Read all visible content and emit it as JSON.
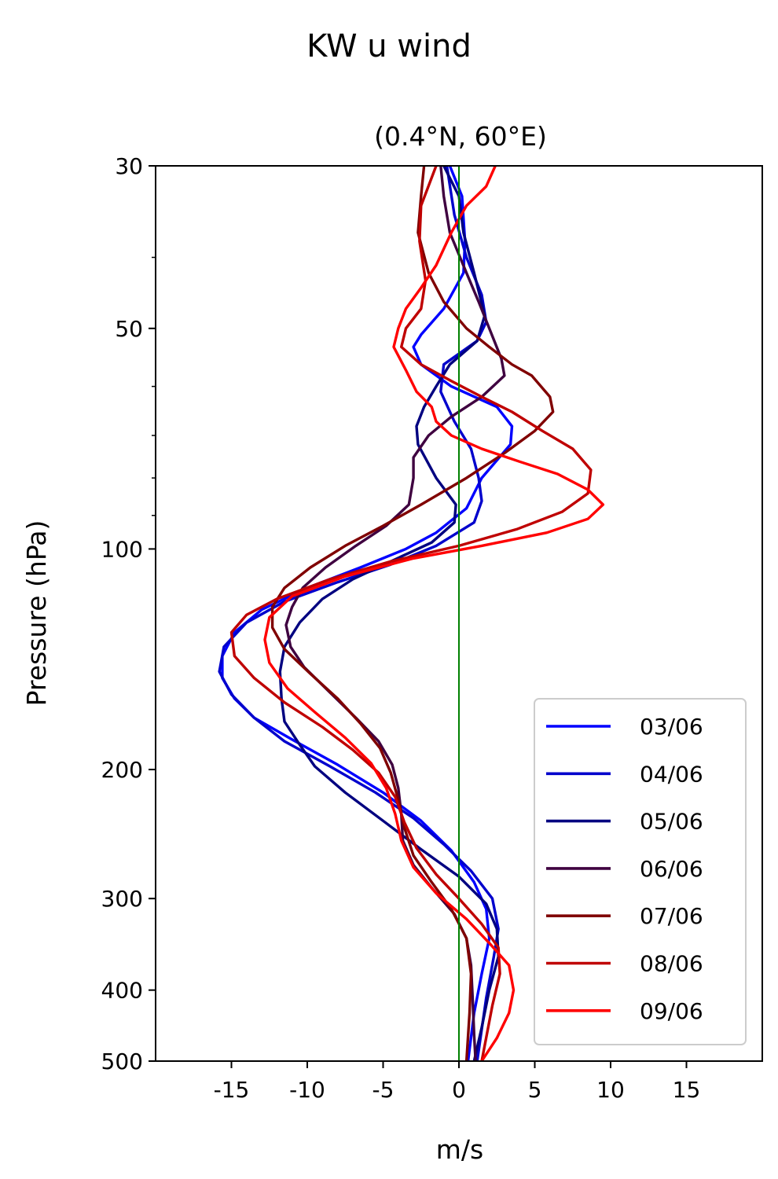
{
  "chart_data": {
    "type": "line",
    "title": "KW u wind",
    "subtitle": "(0.4°N, 60°E)",
    "xlabel": "m/s",
    "ylabel": "Pressure (hPa)",
    "xlim": [
      -20,
      20
    ],
    "ylim": [
      500,
      30
    ],
    "yscale": "log",
    "xticks": [
      -15,
      -10,
      -5,
      0,
      5,
      10,
      15
    ],
    "xtick_labels": [
      "-15",
      "-10",
      "-5",
      "0",
      "5",
      "10",
      "15"
    ],
    "yticks": [
      30,
      50,
      100,
      200,
      300,
      400,
      500
    ],
    "ytick_labels": [
      "30",
      "50",
      "100",
      "200",
      "300",
      "400",
      "500"
    ],
    "yminor_ticks": [
      40,
      60,
      70,
      80,
      90
    ],
    "reference_line": {
      "x": 0,
      "color": "#008000"
    },
    "grid": false,
    "legend_position": "lower-right",
    "series": [
      {
        "name": "03/06",
        "color": "#0000ff",
        "points": [
          [
            -0.6,
            30
          ],
          [
            0.2,
            33
          ],
          [
            0.4,
            38
          ],
          [
            0.3,
            42
          ],
          [
            -1.0,
            47
          ],
          [
            -2.5,
            51
          ],
          [
            -3.0,
            53
          ],
          [
            -2.5,
            56
          ],
          [
            -0.5,
            60
          ],
          [
            2.5,
            64
          ],
          [
            3.5,
            68
          ],
          [
            3.4,
            72
          ],
          [
            1.5,
            80
          ],
          [
            0.5,
            88
          ],
          [
            -1.5,
            95
          ],
          [
            -3.5,
            100
          ],
          [
            -6.5,
            106
          ],
          [
            -10.0,
            113
          ],
          [
            -13.0,
            121
          ],
          [
            -14.8,
            130
          ],
          [
            -15.6,
            140
          ],
          [
            -15.6,
            150
          ],
          [
            -14.8,
            160
          ],
          [
            -13.5,
            170
          ],
          [
            -11.0,
            182
          ],
          [
            -8.0,
            197
          ],
          [
            -5.0,
            215
          ],
          [
            -2.5,
            235
          ],
          [
            -0.5,
            258
          ],
          [
            1.0,
            285
          ],
          [
            1.8,
            310
          ],
          [
            2.0,
            340
          ],
          [
            1.5,
            380
          ],
          [
            1.0,
            430
          ],
          [
            0.6,
            500
          ]
        ]
      },
      {
        "name": "04/06",
        "color": "#0000cc",
        "points": [
          [
            -0.8,
            30
          ],
          [
            -0.3,
            35
          ],
          [
            0.5,
            40
          ],
          [
            1.5,
            45
          ],
          [
            1.8,
            49
          ],
          [
            1.2,
            52
          ],
          [
            -1.0,
            56
          ],
          [
            -1.2,
            61
          ],
          [
            -0.3,
            67
          ],
          [
            0.8,
            73
          ],
          [
            1.3,
            80
          ],
          [
            1.5,
            86
          ],
          [
            1.0,
            92
          ],
          [
            -1.5,
            99
          ],
          [
            -4.5,
            105
          ],
          [
            -8.0,
            111
          ],
          [
            -11.5,
            118
          ],
          [
            -14.0,
            126
          ],
          [
            -15.5,
            136
          ],
          [
            -15.8,
            147
          ],
          [
            -15.0,
            158
          ],
          [
            -13.5,
            170
          ],
          [
            -11.5,
            183
          ],
          [
            -8.5,
            198
          ],
          [
            -5.5,
            215
          ],
          [
            -3.0,
            233
          ],
          [
            -1.0,
            253
          ],
          [
            0.8,
            275
          ],
          [
            2.2,
            300
          ],
          [
            2.6,
            330
          ],
          [
            2.3,
            360
          ],
          [
            1.8,
            410
          ],
          [
            1.2,
            500
          ]
        ]
      },
      {
        "name": "05/06",
        "color": "#000080",
        "points": [
          [
            -1.0,
            30
          ],
          [
            0.0,
            33
          ],
          [
            0.3,
            37
          ],
          [
            1.0,
            42
          ],
          [
            1.7,
            48
          ],
          [
            1.2,
            52
          ],
          [
            -0.6,
            56
          ],
          [
            -1.5,
            60
          ],
          [
            -2.3,
            64
          ],
          [
            -2.8,
            68
          ],
          [
            -2.7,
            72
          ],
          [
            -1.5,
            80
          ],
          [
            -0.2,
            87
          ],
          [
            -0.3,
            92
          ],
          [
            -1.8,
            98
          ],
          [
            -4.5,
            104
          ],
          [
            -7.0,
            110
          ],
          [
            -9.0,
            117
          ],
          [
            -10.5,
            126
          ],
          [
            -11.5,
            136
          ],
          [
            -11.8,
            147
          ],
          [
            -11.7,
            160
          ],
          [
            -11.5,
            172
          ],
          [
            -10.5,
            185
          ],
          [
            -9.5,
            198
          ],
          [
            -7.5,
            215
          ],
          [
            -5.0,
            235
          ],
          [
            -2.5,
            257
          ],
          [
            0.0,
            280
          ],
          [
            1.8,
            305
          ],
          [
            2.5,
            330
          ],
          [
            2.6,
            360
          ],
          [
            2.0,
            400
          ],
          [
            1.5,
            450
          ],
          [
            1.0,
            500
          ]
        ]
      },
      {
        "name": "06/06",
        "color": "#3f0040",
        "points": [
          [
            -1.2,
            30
          ],
          [
            -1.0,
            33
          ],
          [
            -0.6,
            37
          ],
          [
            0.5,
            42
          ],
          [
            1.3,
            46
          ],
          [
            2.0,
            50
          ],
          [
            2.8,
            55
          ],
          [
            3.0,
            58
          ],
          [
            1.5,
            62
          ],
          [
            -0.5,
            66
          ],
          [
            -2.0,
            70
          ],
          [
            -3.0,
            75
          ],
          [
            -3.0,
            80
          ],
          [
            -3.3,
            87
          ],
          [
            -4.8,
            93
          ],
          [
            -6.8,
            99
          ],
          [
            -8.8,
            106
          ],
          [
            -10.3,
            113
          ],
          [
            -11.0,
            120
          ],
          [
            -11.4,
            127
          ],
          [
            -11.1,
            136
          ],
          [
            -10.2,
            145
          ],
          [
            -8.5,
            157
          ],
          [
            -6.8,
            170
          ],
          [
            -5.3,
            183
          ],
          [
            -4.4,
            197
          ],
          [
            -4.0,
            212
          ],
          [
            -3.8,
            230
          ],
          [
            -3.7,
            250
          ],
          [
            -3.0,
            270
          ],
          [
            -1.8,
            290
          ],
          [
            -0.3,
            315
          ],
          [
            0.5,
            340
          ],
          [
            0.8,
            370
          ],
          [
            0.9,
            410
          ],
          [
            1.0,
            460
          ],
          [
            1.1,
            500
          ]
        ]
      },
      {
        "name": "07/06",
        "color": "#800000",
        "points": [
          [
            -2.3,
            30
          ],
          [
            -2.5,
            33
          ],
          [
            -2.7,
            37
          ],
          [
            -2.0,
            42
          ],
          [
            -1.0,
            46
          ],
          [
            0.5,
            50
          ],
          [
            2.0,
            53
          ],
          [
            3.5,
            56
          ],
          [
            4.8,
            58
          ],
          [
            6.0,
            62
          ],
          [
            6.2,
            65
          ],
          [
            5.0,
            69
          ],
          [
            3.0,
            74
          ],
          [
            0.5,
            80
          ],
          [
            -2.5,
            87
          ],
          [
            -5.0,
            93
          ],
          [
            -7.5,
            99
          ],
          [
            -9.8,
            106
          ],
          [
            -11.5,
            113
          ],
          [
            -12.3,
            120
          ],
          [
            -12.3,
            128
          ],
          [
            -11.5,
            137
          ],
          [
            -9.8,
            148
          ],
          [
            -8.0,
            160
          ],
          [
            -6.5,
            173
          ],
          [
            -5.2,
            187
          ],
          [
            -4.5,
            202
          ],
          [
            -4.0,
            220
          ],
          [
            -3.6,
            240
          ],
          [
            -3.0,
            262
          ],
          [
            -1.8,
            285
          ],
          [
            -0.5,
            310
          ],
          [
            0.5,
            340
          ],
          [
            0.8,
            380
          ],
          [
            0.7,
            430
          ],
          [
            0.5,
            500
          ]
        ]
      },
      {
        "name": "08/06",
        "color": "#bf0000",
        "points": [
          [
            -1.5,
            30
          ],
          [
            -2.5,
            34
          ],
          [
            -2.6,
            38
          ],
          [
            -2.2,
            43
          ],
          [
            -2.5,
            47
          ],
          [
            -3.5,
            50
          ],
          [
            -3.8,
            53
          ],
          [
            -2.5,
            56
          ],
          [
            -0.5,
            59
          ],
          [
            1.5,
            62
          ],
          [
            3.5,
            65
          ],
          [
            5.5,
            69
          ],
          [
            7.5,
            73
          ],
          [
            8.7,
            78
          ],
          [
            8.5,
            84
          ],
          [
            6.8,
            89
          ],
          [
            3.8,
            94
          ],
          [
            0.0,
            99
          ],
          [
            -4.5,
            104
          ],
          [
            -8.5,
            110
          ],
          [
            -12.0,
            117
          ],
          [
            -14.0,
            123
          ],
          [
            -15.0,
            130
          ],
          [
            -14.8,
            140
          ],
          [
            -13.5,
            150
          ],
          [
            -11.5,
            162
          ],
          [
            -9.0,
            175
          ],
          [
            -7.0,
            188
          ],
          [
            -5.3,
            202
          ],
          [
            -4.2,
            218
          ],
          [
            -3.6,
            236
          ],
          [
            -2.8,
            256
          ],
          [
            -1.5,
            278
          ],
          [
            0.0,
            300
          ],
          [
            1.5,
            325
          ],
          [
            2.6,
            350
          ],
          [
            2.7,
            380
          ],
          [
            2.2,
            420
          ],
          [
            1.5,
            500
          ]
        ]
      },
      {
        "name": "09/06",
        "color": "#ff0000",
        "points": [
          [
            2.4,
            30
          ],
          [
            1.8,
            32
          ],
          [
            0.5,
            34
          ],
          [
            -0.5,
            37
          ],
          [
            -1.5,
            41
          ],
          [
            -2.5,
            44
          ],
          [
            -3.5,
            47
          ],
          [
            -4.0,
            50
          ],
          [
            -4.3,
            53
          ],
          [
            -3.5,
            57
          ],
          [
            -2.8,
            61
          ],
          [
            -1.8,
            64
          ],
          [
            -1.5,
            67
          ],
          [
            -0.5,
            70
          ],
          [
            1.5,
            73
          ],
          [
            4.0,
            76
          ],
          [
            6.5,
            79
          ],
          [
            8.5,
            83
          ],
          [
            9.5,
            87
          ],
          [
            8.5,
            91
          ],
          [
            5.8,
            95
          ],
          [
            1.5,
            99
          ],
          [
            -3.0,
            103
          ],
          [
            -7.5,
            109
          ],
          [
            -11.0,
            116
          ],
          [
            -12.5,
            124
          ],
          [
            -12.8,
            133
          ],
          [
            -12.5,
            143
          ],
          [
            -11.3,
            155
          ],
          [
            -9.5,
            167
          ],
          [
            -7.5,
            181
          ],
          [
            -5.8,
            196
          ],
          [
            -4.8,
            212
          ],
          [
            -4.2,
            230
          ],
          [
            -3.8,
            250
          ],
          [
            -3.0,
            272
          ],
          [
            -1.5,
            295
          ],
          [
            0.5,
            320
          ],
          [
            2.0,
            345
          ],
          [
            3.3,
            370
          ],
          [
            3.6,
            400
          ],
          [
            3.3,
            430
          ],
          [
            2.5,
            465
          ],
          [
            1.5,
            500
          ]
        ]
      }
    ]
  }
}
